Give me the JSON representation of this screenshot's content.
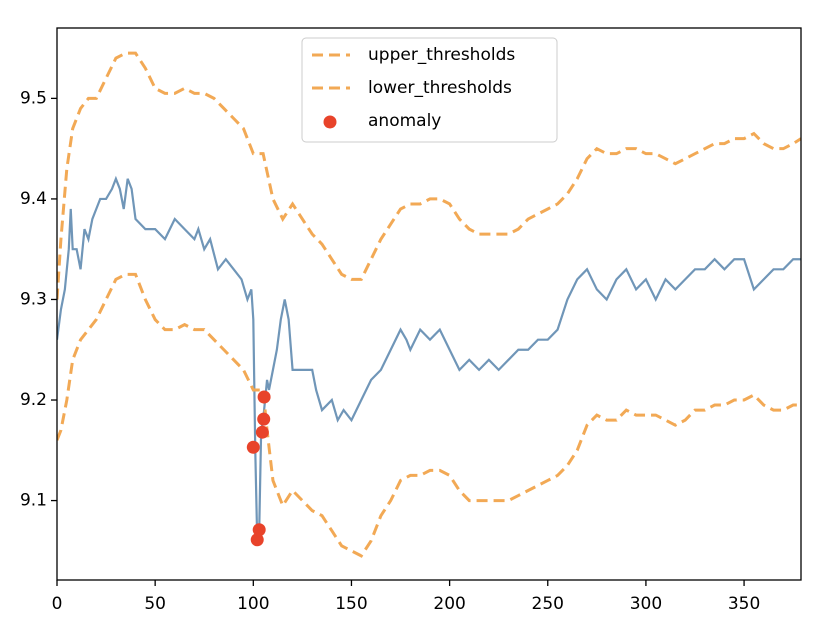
{
  "chart_data": {
    "type": "line",
    "xlim": [
      0,
      379
    ],
    "xticks": [
      0,
      50,
      100,
      150,
      200,
      250,
      300,
      350
    ],
    "ylim": [
      9.021,
      9.57
    ],
    "yticks": [
      9.1,
      9.2,
      9.3,
      9.4,
      9.5
    ],
    "grid": false,
    "legend": "upper center",
    "series": [
      {
        "color": "#7096b8",
        "dash": false,
        "x": [
          0,
          2,
          4,
          6,
          7,
          8,
          10,
          12,
          14,
          16,
          18,
          20,
          22,
          25,
          28,
          30,
          32,
          34,
          36,
          38,
          40,
          45,
          50,
          55,
          60,
          65,
          70,
          72,
          75,
          78,
          82,
          86,
          90,
          94,
          97,
          99,
          100,
          101,
          102,
          103,
          104,
          105,
          106,
          107,
          108,
          110,
          112,
          114,
          116,
          118,
          120,
          125,
          130,
          132,
          135,
          140,
          143,
          146,
          150,
          155,
          160,
          165,
          170,
          175,
          178,
          180,
          185,
          190,
          195,
          200,
          205,
          210,
          215,
          220,
          225,
          230,
          235,
          240,
          245,
          250,
          255,
          260,
          265,
          270,
          275,
          280,
          285,
          290,
          295,
          300,
          305,
          310,
          315,
          320,
          325,
          330,
          335,
          340,
          345,
          350,
          355,
          360,
          365,
          370,
          375,
          379
        ],
        "values": [
          9.26,
          9.29,
          9.31,
          9.35,
          9.39,
          9.35,
          9.35,
          9.33,
          9.37,
          9.36,
          9.38,
          9.39,
          9.4,
          9.4,
          9.41,
          9.42,
          9.41,
          9.39,
          9.42,
          9.41,
          9.38,
          9.37,
          9.37,
          9.36,
          9.38,
          9.37,
          9.36,
          9.37,
          9.35,
          9.36,
          9.33,
          9.34,
          9.33,
          9.32,
          9.3,
          9.31,
          9.28,
          9.15,
          9.06,
          9.07,
          9.17,
          9.18,
          9.2,
          9.22,
          9.21,
          9.23,
          9.25,
          9.28,
          9.3,
          9.28,
          9.23,
          9.23,
          9.23,
          9.21,
          9.19,
          9.2,
          9.18,
          9.19,
          9.18,
          9.2,
          9.22,
          9.23,
          9.25,
          9.27,
          9.26,
          9.25,
          9.27,
          9.26,
          9.27,
          9.25,
          9.23,
          9.24,
          9.23,
          9.24,
          9.23,
          9.24,
          9.25,
          9.25,
          9.26,
          9.26,
          9.27,
          9.3,
          9.32,
          9.33,
          9.31,
          9.3,
          9.32,
          9.33,
          9.31,
          9.32,
          9.3,
          9.32,
          9.31,
          9.32,
          9.33,
          9.33,
          9.34,
          9.33,
          9.34,
          9.34,
          9.31,
          9.32,
          9.33,
          9.33,
          9.34,
          9.34
        ]
      },
      {
        "name": "upper_thresholds",
        "color": "#f2a955",
        "dash": true,
        "x": [
          0,
          2,
          5,
          8,
          12,
          16,
          20,
          25,
          30,
          35,
          40,
          45,
          50,
          55,
          60,
          65,
          70,
          75,
          80,
          85,
          90,
          95,
          100,
          105,
          110,
          115,
          120,
          125,
          130,
          135,
          140,
          145,
          150,
          155,
          160,
          165,
          170,
          175,
          180,
          185,
          190,
          195,
          200,
          205,
          210,
          215,
          220,
          225,
          230,
          235,
          240,
          245,
          250,
          255,
          260,
          265,
          270,
          275,
          280,
          285,
          290,
          295,
          300,
          305,
          310,
          315,
          320,
          325,
          330,
          335,
          340,
          345,
          350,
          355,
          360,
          365,
          370,
          375,
          379
        ],
        "values": [
          9.3,
          9.36,
          9.43,
          9.47,
          9.49,
          9.5,
          9.5,
          9.52,
          9.54,
          9.545,
          9.545,
          9.53,
          9.51,
          9.505,
          9.505,
          9.51,
          9.505,
          9.505,
          9.5,
          9.49,
          9.48,
          9.47,
          9.445,
          9.445,
          9.4,
          9.38,
          9.395,
          9.38,
          9.365,
          9.355,
          9.34,
          9.325,
          9.32,
          9.32,
          9.34,
          9.36,
          9.375,
          9.39,
          9.395,
          9.395,
          9.4,
          9.4,
          9.395,
          9.38,
          9.37,
          9.365,
          9.365,
          9.365,
          9.365,
          9.37,
          9.38,
          9.385,
          9.39,
          9.395,
          9.405,
          9.42,
          9.44,
          9.45,
          9.445,
          9.445,
          9.45,
          9.45,
          9.445,
          9.445,
          9.44,
          9.435,
          9.44,
          9.445,
          9.45,
          9.455,
          9.455,
          9.46,
          9.46,
          9.465,
          9.455,
          9.45,
          9.45,
          9.455,
          9.46
        ]
      },
      {
        "name": "lower_thresholds",
        "color": "#f2a955",
        "dash": true,
        "x": [
          0,
          2,
          5,
          8,
          12,
          16,
          20,
          25,
          30,
          35,
          40,
          45,
          50,
          55,
          60,
          65,
          70,
          75,
          80,
          85,
          90,
          95,
          100,
          105,
          107,
          110,
          115,
          120,
          125,
          130,
          135,
          140,
          145,
          150,
          155,
          160,
          165,
          170,
          175,
          180,
          185,
          190,
          195,
          200,
          205,
          210,
          215,
          220,
          225,
          230,
          235,
          240,
          245,
          250,
          255,
          260,
          265,
          270,
          275,
          280,
          285,
          290,
          295,
          300,
          305,
          310,
          315,
          320,
          325,
          330,
          335,
          340,
          345,
          350,
          355,
          360,
          365,
          370,
          375,
          379
        ],
        "values": [
          9.16,
          9.17,
          9.2,
          9.24,
          9.26,
          9.27,
          9.28,
          9.3,
          9.32,
          9.325,
          9.325,
          9.3,
          9.28,
          9.27,
          9.27,
          9.275,
          9.27,
          9.27,
          9.26,
          9.25,
          9.24,
          9.23,
          9.21,
          9.21,
          9.17,
          9.12,
          9.095,
          9.11,
          9.1,
          9.09,
          9.085,
          9.07,
          9.055,
          9.05,
          9.045,
          9.06,
          9.085,
          9.1,
          9.12,
          9.125,
          9.125,
          9.13,
          9.13,
          9.125,
          9.11,
          9.1,
          9.1,
          9.1,
          9.1,
          9.1,
          9.105,
          9.11,
          9.115,
          9.12,
          9.125,
          9.135,
          9.15,
          9.175,
          9.185,
          9.18,
          9.18,
          9.19,
          9.185,
          9.185,
          9.185,
          9.18,
          9.175,
          9.18,
          9.19,
          9.19,
          9.195,
          9.195,
          9.2,
          9.2,
          9.205,
          9.195,
          9.19,
          9.19,
          9.195,
          9.195
        ]
      },
      {
        "name": "anomaly",
        "type": "scatter",
        "color": "#e8432a",
        "x": [
          100,
          102,
          103,
          104.6,
          105.3,
          105.5
        ],
        "values": [
          9.153,
          9.061,
          9.071,
          9.168,
          9.181,
          9.203
        ]
      }
    ]
  }
}
